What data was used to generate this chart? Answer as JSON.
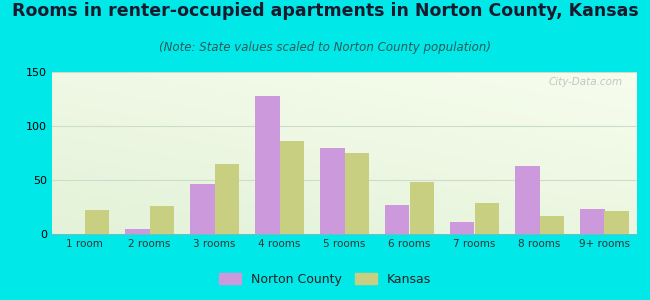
{
  "title": "Rooms in renter-occupied apartments in Norton County, Kansas",
  "subtitle": "(Note: State values scaled to Norton County population)",
  "categories": [
    "1 room",
    "2 rooms",
    "3 rooms",
    "4 rooms",
    "5 rooms",
    "6 rooms",
    "7 rooms",
    "8 rooms",
    "9+ rooms"
  ],
  "norton_county": [
    0,
    5,
    46,
    128,
    80,
    27,
    11,
    63,
    23
  ],
  "kansas": [
    22,
    26,
    65,
    86,
    75,
    48,
    29,
    17,
    21
  ],
  "norton_color": "#cc99dd",
  "kansas_color": "#c8cf80",
  "bg_color": "#00e8e8",
  "ylim": [
    0,
    150
  ],
  "yticks": [
    0,
    50,
    100,
    150
  ],
  "bar_width": 0.38,
  "legend_norton": "Norton County",
  "legend_kansas": "Kansas",
  "title_fontsize": 12.5,
  "subtitle_fontsize": 8.5,
  "title_color": "#1a1a2e",
  "subtitle_color": "#2a5a5a",
  "watermark": "City-Data.com",
  "grid_color": "#ccddcc"
}
